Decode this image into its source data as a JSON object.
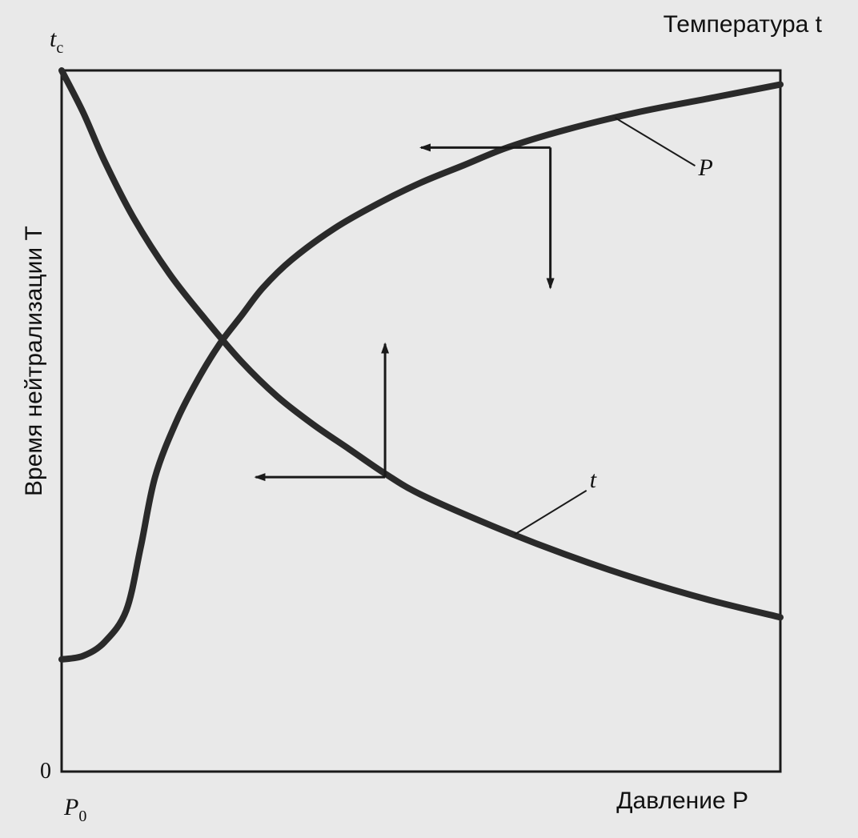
{
  "chart_data": {
    "type": "line",
    "title": "",
    "xlabel": "Давление P",
    "ylabel": "Время нейтрализации T",
    "ylabel_right": "Температура t",
    "y_top_tick": "t",
    "y_top_tick_sub": "c",
    "y_zero_tick": "0",
    "x_origin_tick": "P",
    "x_origin_tick_sub": "0",
    "grid": false,
    "legend": "none",
    "x_axis": {
      "range": [
        0,
        1
      ]
    },
    "y_axis": {
      "range": [
        0,
        1
      ]
    },
    "series": [
      {
        "name": "P",
        "color": "#2a2a2a",
        "x": [
          0.0,
          0.03,
          0.06,
          0.09,
          0.11,
          0.13,
          0.16,
          0.19,
          0.22,
          0.25,
          0.28,
          0.32,
          0.38,
          0.44,
          0.5,
          0.56,
          0.62,
          0.7,
          0.8,
          0.9,
          1.0
        ],
        "y": [
          0.16,
          0.165,
          0.185,
          0.23,
          0.32,
          0.42,
          0.5,
          0.56,
          0.61,
          0.65,
          0.69,
          0.73,
          0.775,
          0.81,
          0.84,
          0.865,
          0.89,
          0.915,
          0.94,
          0.96,
          0.98
        ]
      },
      {
        "name": "t",
        "color": "#2a2a2a",
        "x": [
          0.0,
          0.03,
          0.06,
          0.1,
          0.15,
          0.2,
          0.25,
          0.3,
          0.35,
          0.4,
          0.45,
          0.5,
          0.6,
          0.7,
          0.8,
          0.9,
          1.0
        ],
        "y": [
          1.0,
          0.94,
          0.87,
          0.79,
          0.71,
          0.645,
          0.585,
          0.535,
          0.495,
          0.46,
          0.425,
          0.395,
          0.35,
          0.31,
          0.275,
          0.245,
          0.22
        ]
      }
    ],
    "annotations": [
      {
        "label": "P",
        "target_series": "P",
        "target_x": 0.77
      },
      {
        "label": "t",
        "target_series": "t",
        "target_x": 0.63
      }
    ],
    "arrows": [
      {
        "from": [
          0.68,
          0.89
        ],
        "to": [
          0.5,
          0.89
        ]
      },
      {
        "from": [
          0.68,
          0.89
        ],
        "to": [
          0.68,
          0.69
        ]
      },
      {
        "from": [
          0.45,
          0.42
        ],
        "to": [
          0.27,
          0.42
        ]
      },
      {
        "from": [
          0.45,
          0.42
        ],
        "to": [
          0.45,
          0.61
        ]
      }
    ]
  }
}
